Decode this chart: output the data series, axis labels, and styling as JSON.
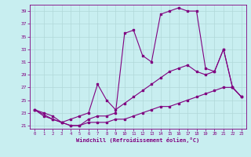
{
  "xlabel": "Windchill (Refroidissement éolien,°C)",
  "bg_color": "#c8eef0",
  "line_color": "#800080",
  "grid_color": "#b0d8d8",
  "xlim": [
    -0.5,
    23.5
  ],
  "ylim": [
    20.5,
    40.0
  ],
  "yticks": [
    21,
    23,
    25,
    27,
    29,
    31,
    33,
    35,
    37,
    39
  ],
  "xticks": [
    0,
    1,
    2,
    3,
    4,
    5,
    6,
    7,
    8,
    9,
    10,
    11,
    12,
    13,
    14,
    15,
    16,
    17,
    18,
    19,
    20,
    21,
    22,
    23
  ],
  "line1_x": [
    0,
    1,
    2,
    3,
    4,
    5,
    6,
    7,
    8,
    9,
    10,
    11,
    12,
    13,
    14,
    15,
    16,
    17,
    18,
    19,
    20,
    21,
    22,
    23
  ],
  "line1_y": [
    23.5,
    23.0,
    22.5,
    21.5,
    21.0,
    21.0,
    21.5,
    21.5,
    21.5,
    22.0,
    22.0,
    22.5,
    23.0,
    23.5,
    24.0,
    24.0,
    24.5,
    25.0,
    25.5,
    26.0,
    26.5,
    27.0,
    27.0,
    25.5
  ],
  "line2_x": [
    0,
    1,
    2,
    3,
    4,
    5,
    6,
    7,
    8,
    9,
    10,
    11,
    12,
    13,
    14,
    15,
    16,
    17,
    18,
    19,
    20,
    21,
    22,
    23
  ],
  "line2_y": [
    23.5,
    22.5,
    22.0,
    21.5,
    22.0,
    22.5,
    23.0,
    27.5,
    25.0,
    23.5,
    24.5,
    25.5,
    26.5,
    27.5,
    28.5,
    29.5,
    30.0,
    30.5,
    29.5,
    29.0,
    29.5,
    33.0,
    27.0,
    25.5
  ],
  "line3_x": [
    0,
    2,
    3,
    4,
    5,
    6,
    7,
    8,
    9,
    10,
    11,
    12,
    13,
    14,
    15,
    16,
    17,
    18,
    19,
    20,
    21,
    22,
    23
  ],
  "line3_y": [
    23.5,
    22.0,
    21.5,
    21.0,
    21.0,
    22.0,
    22.5,
    22.5,
    23.0,
    35.5,
    36.0,
    32.0,
    31.0,
    38.5,
    39.0,
    39.5,
    39.0,
    39.0,
    30.0,
    29.5,
    33.0,
    27.0,
    25.5
  ]
}
